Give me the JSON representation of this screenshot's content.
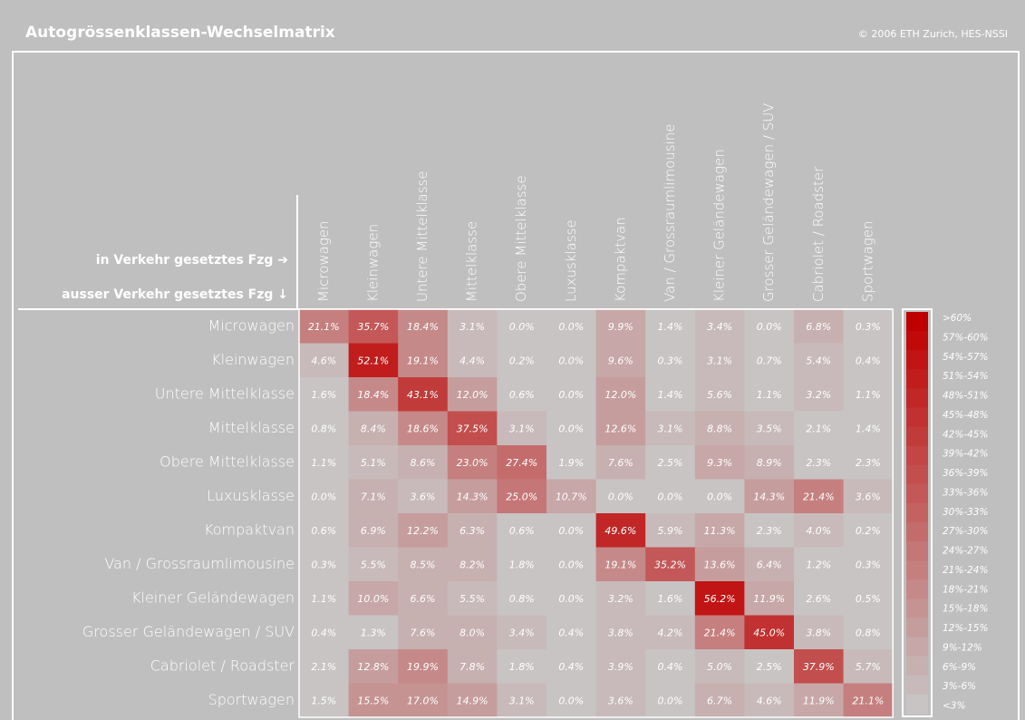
{
  "chart_data": {
    "type": "heatmap",
    "title": "Autogrössenklassen-Wechselmatrix",
    "credit": "© 2006 ETH Zurich, HES-NSSI",
    "x_label": "in Verkehr gesetztes Fzg ➔",
    "y_label": "ausser Verkehr gesetztes Fzg ↓",
    "columns": [
      "Microwagen",
      "Kleinwagen",
      "Untere Mittelklasse",
      "Mittelklasse",
      "Obere Mittelklasse",
      "Luxusklasse",
      "Kompaktvan",
      "Van / Grossraumlimousine",
      "Kleiner Geländewagen",
      "Grosser Geländewagen / SUV",
      "Cabriolet / Roadster",
      "Sportwagen"
    ],
    "rows": [
      "Microwagen",
      "Kleinwagen",
      "Untere Mittelklasse",
      "Mittelklasse",
      "Obere Mittelklasse",
      "Luxusklasse",
      "Kompaktvan",
      "Van / Grossraumlimousine",
      "Kleiner Geländewagen",
      "Grosser Geländewagen / SUV",
      "Cabriolet / Roadster",
      "Sportwagen"
    ],
    "values": [
      [
        21.1,
        35.7,
        18.4,
        3.1,
        0.0,
        0.0,
        9.9,
        1.4,
        3.4,
        0.0,
        6.8,
        0.3
      ],
      [
        4.6,
        52.1,
        19.1,
        4.4,
        0.2,
        0.0,
        9.6,
        0.3,
        3.1,
        0.7,
        5.4,
        0.4
      ],
      [
        1.6,
        18.4,
        43.1,
        12.0,
        0.6,
        0.0,
        12.0,
        1.4,
        5.6,
        1.1,
        3.2,
        1.1
      ],
      [
        0.8,
        8.4,
        18.6,
        37.5,
        3.1,
        0.0,
        12.6,
        3.1,
        8.8,
        3.5,
        2.1,
        1.4
      ],
      [
        1.1,
        5.1,
        8.6,
        23.0,
        27.4,
        1.9,
        7.6,
        2.5,
        9.3,
        8.9,
        2.3,
        2.3
      ],
      [
        0.0,
        7.1,
        3.6,
        14.3,
        25.0,
        10.7,
        0.0,
        0.0,
        0.0,
        14.3,
        21.4,
        3.6
      ],
      [
        0.6,
        6.9,
        12.2,
        6.3,
        0.6,
        0.0,
        49.6,
        5.9,
        11.3,
        2.3,
        4.0,
        0.2
      ],
      [
        0.3,
        5.5,
        8.5,
        8.2,
        1.8,
        0.0,
        19.1,
        35.2,
        13.6,
        6.4,
        1.2,
        0.3
      ],
      [
        1.1,
        10.0,
        6.6,
        5.5,
        0.8,
        0.0,
        3.2,
        1.6,
        56.2,
        11.9,
        2.6,
        0.5
      ],
      [
        0.4,
        1.3,
        7.6,
        8.0,
        3.4,
        0.4,
        3.8,
        4.2,
        21.4,
        45.0,
        3.8,
        0.8
      ],
      [
        2.1,
        12.8,
        19.9,
        7.8,
        1.8,
        0.4,
        3.9,
        0.4,
        5.0,
        2.5,
        37.9,
        5.7
      ],
      [
        1.5,
        15.5,
        17.0,
        14.9,
        3.1,
        0.0,
        3.6,
        0.0,
        6.7,
        4.6,
        11.9,
        21.1
      ]
    ],
    "value_labels": [
      [
        "21.1%",
        "35.7%",
        "18.4%",
        "3.1%",
        "0.0%",
        "0.0%",
        "9.9%",
        "1.4%",
        "3.4%",
        "0.0%",
        "6.8%",
        "0.3%"
      ],
      [
        "4.6%",
        "52.1%",
        "19.1%",
        "4.4%",
        "0.2%",
        "0.0%",
        "9.6%",
        "0.3%",
        "3.1%",
        "0.7%",
        "5.4%",
        "0.4%"
      ],
      [
        "1.6%",
        "18.4%",
        "43.1%",
        "12.0%",
        "0.6%",
        "0.0%",
        "12.0%",
        "1.4%",
        "5.6%",
        "1.1%",
        "3.2%",
        "1.1%"
      ],
      [
        "0.8%",
        "8.4%",
        "18.6%",
        "37.5%",
        "3.1%",
        "0.0%",
        "12.6%",
        "3.1%",
        "8.8%",
        "3.5%",
        "2.1%",
        "1.4%"
      ],
      [
        "1.1%",
        "5.1%",
        "8.6%",
        "23.0%",
        "27.4%",
        "1.9%",
        "7.6%",
        "2.5%",
        "9.3%",
        "8.9%",
        "2.3%",
        "2.3%"
      ],
      [
        "0.0%",
        "7.1%",
        "3.6%",
        "14.3%",
        "25.0%",
        "10.7%",
        "0.0%",
        "0.0%",
        "0.0%",
        "14.3%",
        "21.4%",
        "3.6%"
      ],
      [
        "0.6%",
        "6.9%",
        "12.2%",
        "6.3%",
        "0.6%",
        "0.0%",
        "49.6%",
        "5.9%",
        "11.3%",
        "2.3%",
        "4.0%",
        "0.2%"
      ],
      [
        "0.3%",
        "5.5%",
        "8.5%",
        "8.2%",
        "1.8%",
        "0.0%",
        "19.1%",
        "35.2%",
        "13.6%",
        "6.4%",
        "1.2%",
        "0.3%"
      ],
      [
        "1.1%",
        "10.0%",
        "6.6%",
        "5.5%",
        "0.8%",
        "0.0%",
        "3.2%",
        "1.6%",
        "56.2%",
        "11.9%",
        "2.6%",
        "0.5%"
      ],
      [
        "0.4%",
        "1.3%",
        "7.6%",
        "8.0%",
        "3.4%",
        "0.4%",
        "3.8%",
        "4.2%",
        "21.4%",
        "45.0%",
        "3.8%",
        "0.8%"
      ],
      [
        "2.1%",
        "12.8%",
        "19.9%",
        "7.8%",
        "1.8%",
        "0.4%",
        "3.9%",
        "0.4%",
        "5.0%",
        "2.5%",
        "37.9%",
        "5.7%"
      ],
      [
        "1.5%",
        "15.5%",
        "17.0%",
        "14.9%",
        "3.1%",
        "0.0%",
        "3.6%",
        "0.0%",
        "6.7%",
        "4.6%",
        "11.9%",
        "21.1%"
      ]
    ],
    "color_bins": [
      3,
      6,
      9,
      12,
      15,
      18,
      21,
      24,
      27,
      30,
      33,
      36,
      39,
      42,
      45,
      48,
      51,
      54,
      57,
      60
    ],
    "legend": [
      {
        "label": ">60%",
        "color": "#c00000"
      },
      {
        "label": "57%-60%",
        "color": "#c00a0a"
      },
      {
        "label": "54%-57%",
        "color": "#c11414"
      },
      {
        "label": "51%-54%",
        "color": "#c11d1d"
      },
      {
        "label": "48%-51%",
        "color": "#c22727"
      },
      {
        "label": "45%-48%",
        "color": "#c23131"
      },
      {
        "label": "42%-45%",
        "color": "#c23b3b"
      },
      {
        "label": "39%-42%",
        "color": "#c34545"
      },
      {
        "label": "36%-39%",
        "color": "#c34e4e"
      },
      {
        "label": "33%-36%",
        "color": "#c45858"
      },
      {
        "label": "30%-33%",
        "color": "#c46262"
      },
      {
        "label": "27%-30%",
        "color": "#c46c6c"
      },
      {
        "label": "24%-27%",
        "color": "#c57676"
      },
      {
        "label": "21%-24%",
        "color": "#c57f7f"
      },
      {
        "label": "18%-21%",
        "color": "#c68989"
      },
      {
        "label": "15%-18%",
        "color": "#c69393"
      },
      {
        "label": "12%-15%",
        "color": "#c69d9d"
      },
      {
        "label": "9%-12%",
        "color": "#c7a7a7"
      },
      {
        "label": "6%-9%",
        "color": "#c7b0b0"
      },
      {
        "label": "3%-6%",
        "color": "#c8baba"
      },
      {
        "label": "<3%",
        "color": "#c8c4c4"
      }
    ]
  }
}
